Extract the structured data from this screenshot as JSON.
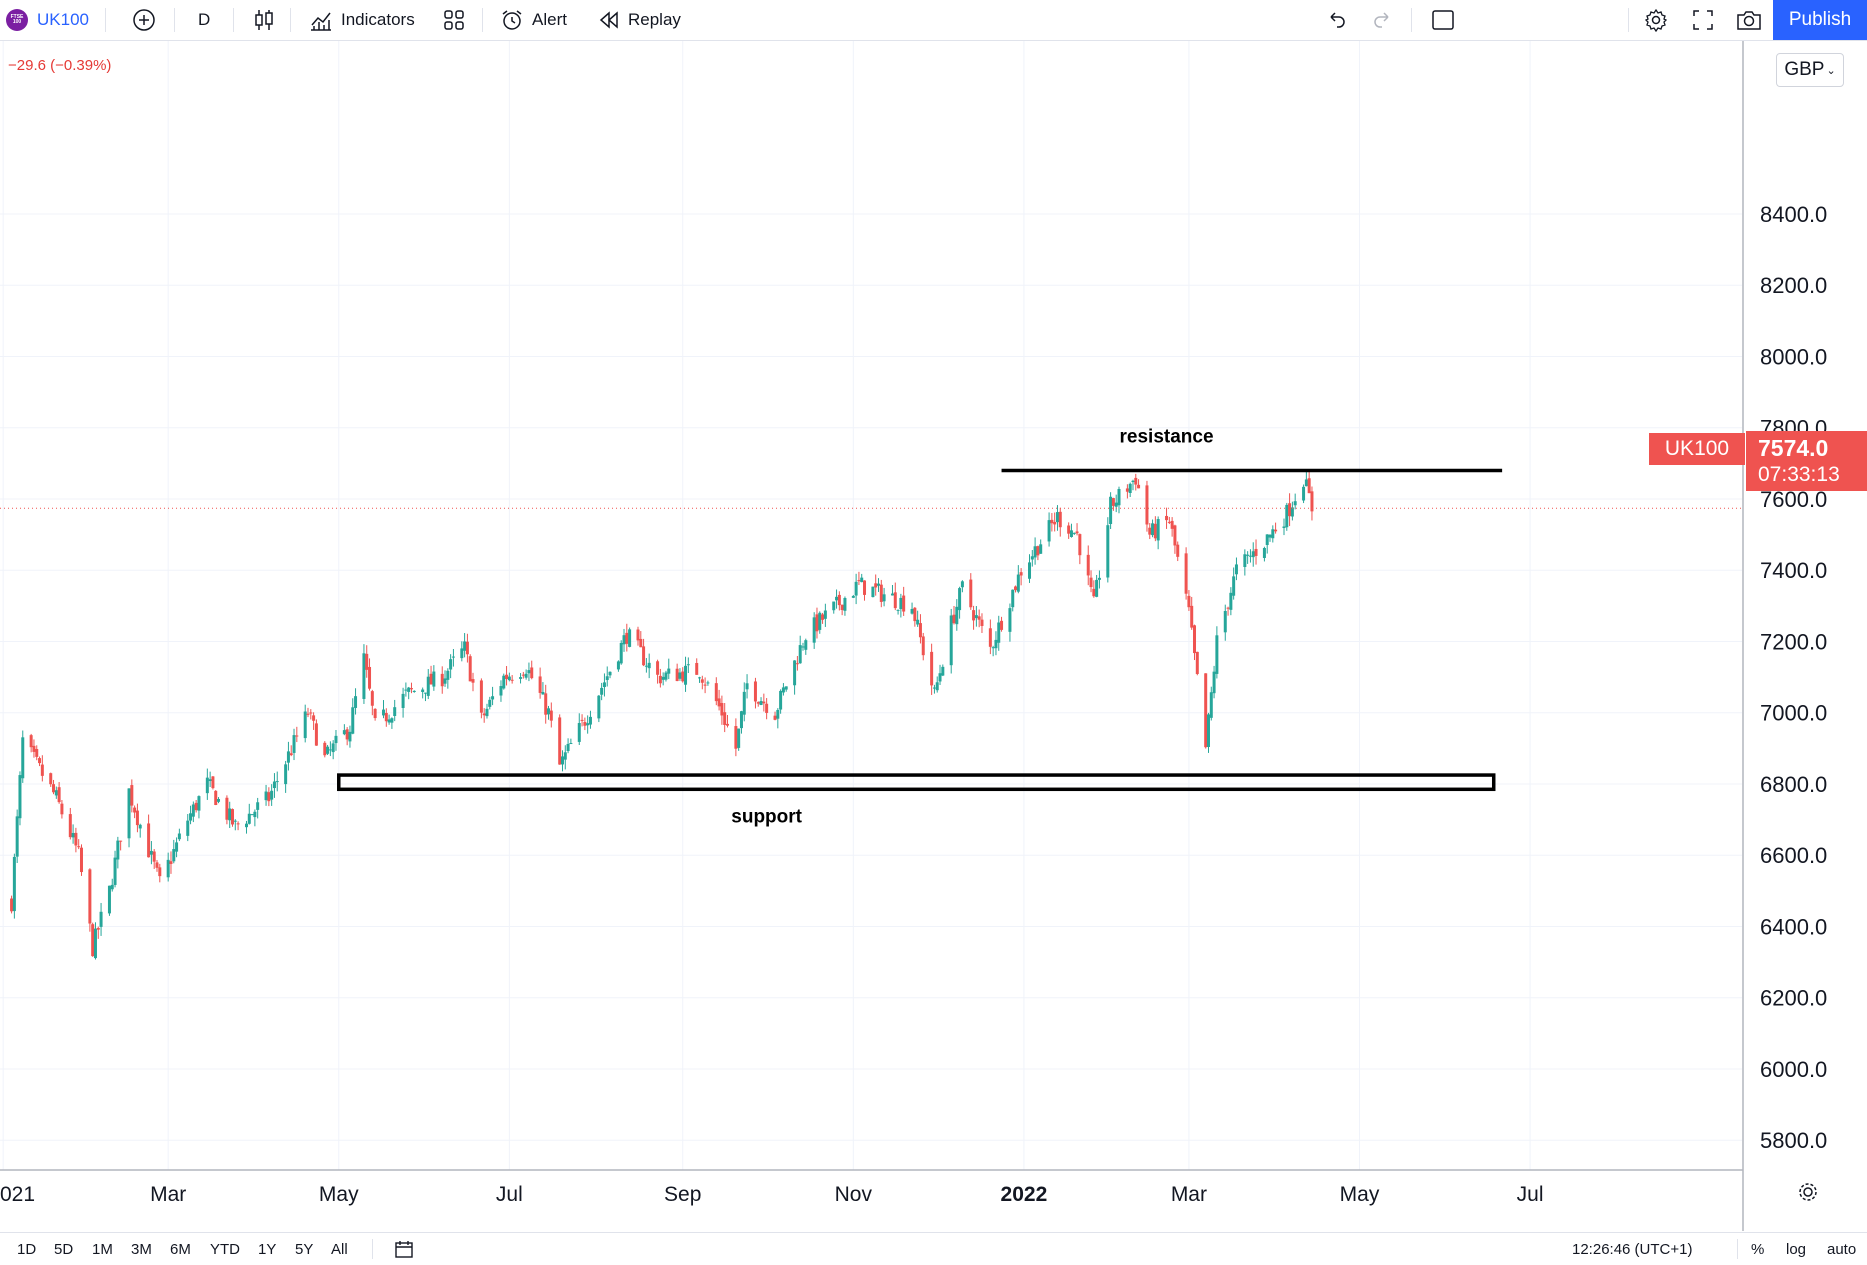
{
  "toolbar": {
    "symbol": "UK100",
    "symbol_logo_text": "FTSE 100",
    "interval": "D",
    "indicators_label": "Indicators",
    "alert_label": "Alert",
    "replay_label": "Replay",
    "publish_label": "Publish"
  },
  "legend": {
    "change": "−29.6 (−0.39%)"
  },
  "price_scale": {
    "currency": "GBP",
    "labels": [
      "8400.0",
      "8200.0",
      "8000.0",
      "7800.0",
      "7600.0",
      "7400.0",
      "7200.0",
      "7000.0",
      "6800.0",
      "6600.0",
      "6400.0",
      "6200.0",
      "6000.0",
      "5800.0"
    ]
  },
  "last_price": {
    "symbol": "UK100",
    "price": "7574.0",
    "countdown": "07:33:13"
  },
  "time_axis": {
    "labels": [
      "021",
      "Mar",
      "May",
      "Jul",
      "Sep",
      "Nov",
      "2022",
      "Mar",
      "May",
      "Jul"
    ]
  },
  "annotations": {
    "resistance": "resistance",
    "support": "support"
  },
  "bottom": {
    "ranges": [
      "1D",
      "5D",
      "1M",
      "3M",
      "6M",
      "YTD",
      "1Y",
      "5Y",
      "All"
    ],
    "clock": "12:26:46 (UTC+1)",
    "percent": "%",
    "log": "log",
    "auto": "auto"
  },
  "colors": {
    "up": "#26a69a",
    "down": "#ef5350",
    "accent": "#2962ff"
  },
  "chart_data": {
    "type": "candlestick",
    "symbol": "UK100",
    "currency": "GBP",
    "ylim": [
      5750,
      8560
    ],
    "levels": {
      "resistance": 7680,
      "support_zone": [
        6785,
        6825
      ]
    },
    "last": 7574.0,
    "path": [
      [
        6470,
        "2021-01-04"
      ],
      [
        6920,
        "2021-01-08"
      ],
      [
        6760,
        "2021-01-20"
      ],
      [
        6600,
        "2021-01-28"
      ],
      [
        6340,
        "2021-02-02"
      ],
      [
        6500,
        "2021-02-08"
      ],
      [
        6780,
        "2021-02-15"
      ],
      [
        6520,
        "2021-02-26"
      ],
      [
        6700,
        "2021-03-08"
      ],
      [
        6800,
        "2021-03-15"
      ],
      [
        6680,
        "2021-03-25"
      ],
      [
        6760,
        "2021-04-06"
      ],
      [
        7000,
        "2021-04-20"
      ],
      [
        6870,
        "2021-04-26"
      ],
      [
        6960,
        "2021-05-05"
      ],
      [
        7150,
        "2021-05-10"
      ],
      [
        6960,
        "2021-05-14"
      ],
      [
        7050,
        "2021-05-25"
      ],
      [
        7100,
        "2021-06-07"
      ],
      [
        7180,
        "2021-06-15"
      ],
      [
        6980,
        "2021-06-21"
      ],
      [
        7100,
        "2021-06-29"
      ],
      [
        7130,
        "2021-07-07"
      ],
      [
        7000,
        "2021-07-15"
      ],
      [
        6850,
        "2021-07-19"
      ],
      [
        6980,
        "2021-07-28"
      ],
      [
        7120,
        "2021-08-06"
      ],
      [
        7220,
        "2021-08-12"
      ],
      [
        7100,
        "2021-08-23"
      ],
      [
        7120,
        "2021-09-07"
      ],
      [
        7000,
        "2021-09-15"
      ],
      [
        6900,
        "2021-09-20"
      ],
      [
        7080,
        "2021-09-24"
      ],
      [
        7000,
        "2021-10-04"
      ],
      [
        7220,
        "2021-10-15"
      ],
      [
        7300,
        "2021-10-26"
      ],
      [
        7360,
        "2021-11-03"
      ],
      [
        7300,
        "2021-11-22"
      ],
      [
        7050,
        "2021-11-30"
      ],
      [
        7250,
        "2021-12-06"
      ],
      [
        7350,
        "2021-12-10"
      ],
      [
        7180,
        "2021-12-20"
      ],
      [
        7400,
        "2021-12-31"
      ],
      [
        7550,
        "2022-01-13"
      ],
      [
        7500,
        "2022-01-20"
      ],
      [
        7300,
        "2022-01-26"
      ],
      [
        7580,
        "2022-02-01"
      ],
      [
        7660,
        "2022-02-10"
      ],
      [
        7500,
        "2022-02-15"
      ],
      [
        7540,
        "2022-02-22"
      ],
      [
        7280,
        "2022-03-01"
      ],
      [
        6900,
        "2022-03-07"
      ],
      [
        7200,
        "2022-03-11"
      ],
      [
        7400,
        "2022-03-18"
      ],
      [
        7480,
        "2022-03-28"
      ],
      [
        7560,
        "2022-04-05"
      ],
      [
        7660,
        "2022-04-11"
      ],
      [
        7574,
        "2022-04-14"
      ]
    ],
    "x_range": [
      "2020-12-28",
      "2022-07-26"
    ],
    "x_ticks": [
      "2021-01-01",
      "2021-03-01",
      "2021-05-01",
      "2021-07-01",
      "2021-09-01",
      "2021-11-01",
      "2022-01-01",
      "2022-03-01",
      "2022-05-01",
      "2022-07-01"
    ],
    "y_ticks": [
      8400,
      8200,
      8000,
      7800,
      7600,
      7400,
      7200,
      7000,
      6800,
      6600,
      6400,
      6200,
      6000,
      5800
    ]
  }
}
